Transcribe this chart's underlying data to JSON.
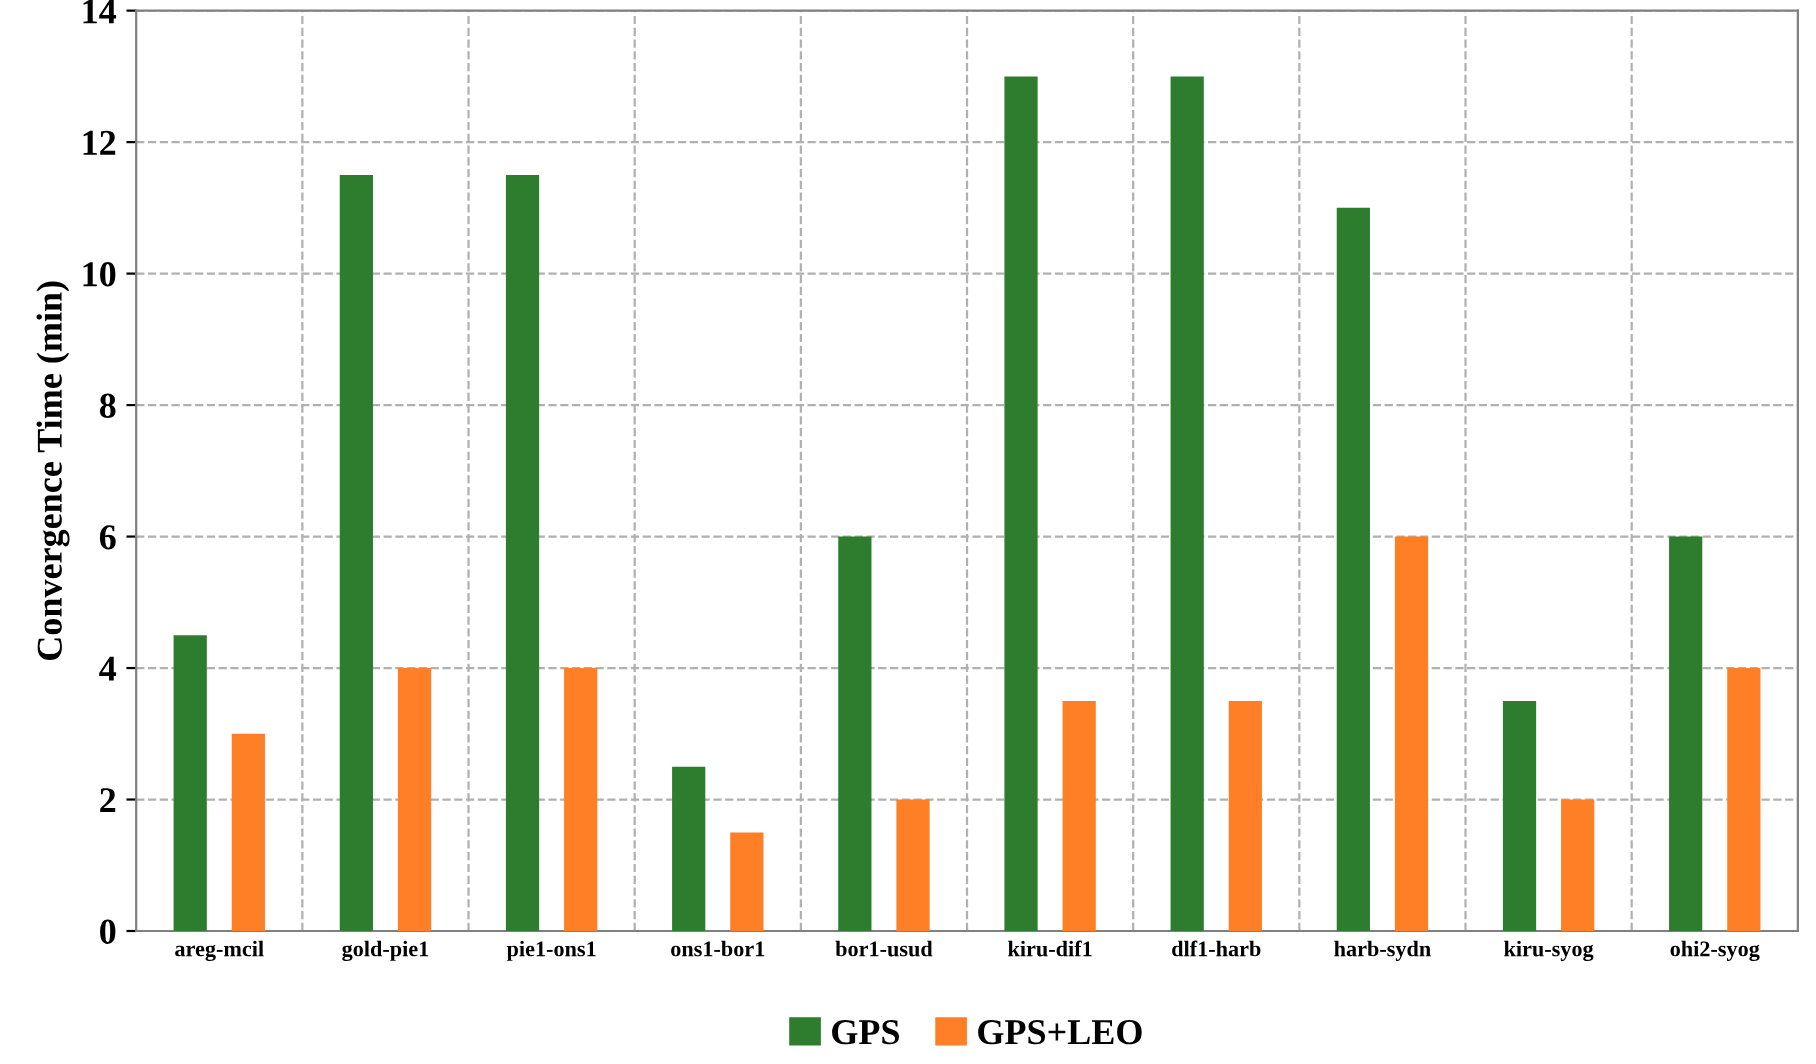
{
  "chart_data": {
    "type": "bar",
    "ylabel": "Convergence Time (min)",
    "categories": [
      "areg-mcil",
      "gold-pie1",
      "pie1-ons1",
      "ons1-bor1",
      "bor1-usud",
      "kiru-dif1",
      "dlf1-harb",
      "harb-sydn",
      "kiru-syog",
      "ohi2-syog"
    ],
    "series": [
      {
        "name": "GPS",
        "color": "#2e7d2e",
        "values": [
          4.5,
          11.5,
          11.5,
          2.5,
          6,
          13,
          13,
          11,
          3.5,
          6
        ]
      },
      {
        "name": "GPS+LEO",
        "color": "#ff7f27",
        "values": [
          3,
          4,
          4,
          1.5,
          2,
          3.5,
          3.5,
          6,
          2,
          4
        ]
      }
    ],
    "ylim": [
      0,
      14
    ],
    "yticks": [
      0,
      2,
      4,
      6,
      8,
      10,
      12,
      14
    ],
    "grid": true,
    "legend": "bottom"
  }
}
